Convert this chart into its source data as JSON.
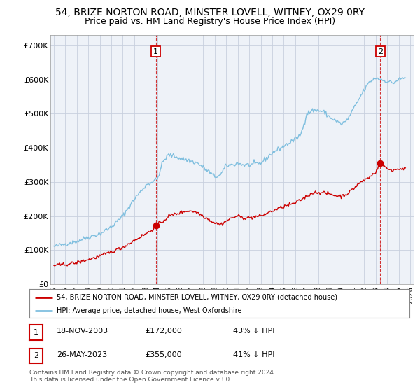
{
  "title": "54, BRIZE NORTON ROAD, MINSTER LOVELL, WITNEY, OX29 0RY",
  "subtitle": "Price paid vs. HM Land Registry's House Price Index (HPI)",
  "title_fontsize": 10.5,
  "subtitle_fontsize": 9.5,
  "ylabel_ticks": [
    "£0",
    "£100K",
    "£200K",
    "£300K",
    "£400K",
    "£500K",
    "£600K",
    "£700K"
  ],
  "ytick_values": [
    0,
    100000,
    200000,
    300000,
    400000,
    500000,
    600000,
    700000
  ],
  "ylim": [
    0,
    730000
  ],
  "xlim_start": 1994.7,
  "xlim_end": 2026.3,
  "hpi_color": "#7fbfdf",
  "price_color": "#cc0000",
  "bg_color": "#eef2f8",
  "grid_color": "#c8d0de",
  "sale1_x": 2003.88,
  "sale1_y": 172000,
  "sale1_label": "1",
  "sale2_x": 2023.4,
  "sale2_y": 355000,
  "sale2_label": "2",
  "legend_line1": "54, BRIZE NORTON ROAD, MINSTER LOVELL, WITNEY, OX29 0RY (detached house)",
  "legend_line2": "HPI: Average price, detached house, West Oxfordshire",
  "table_row1": [
    "1",
    "18-NOV-2003",
    "£172,000",
    "43% ↓ HPI"
  ],
  "table_row2": [
    "2",
    "26-MAY-2023",
    "£355,000",
    "41% ↓ HPI"
  ],
  "footer": "Contains HM Land Registry data © Crown copyright and database right 2024.\nThis data is licensed under the Open Government Licence v3.0."
}
